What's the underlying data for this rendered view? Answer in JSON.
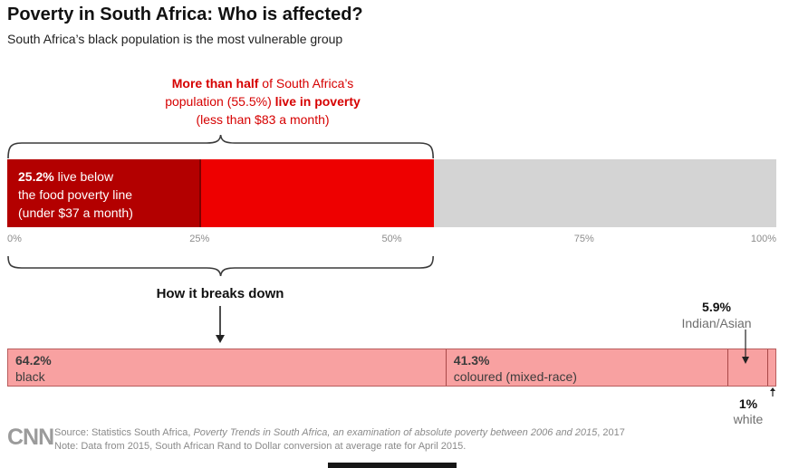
{
  "header": {
    "title": "Poverty in South Africa: Who is affected?",
    "subtitle": "South Africa’s black population is the most vulnerable group"
  },
  "annotation": {
    "line1_bold": "More than half",
    "line1_rest": " of South Africa’s",
    "line2_pre": "population (55.5%) ",
    "line2_bold": "live in poverty",
    "line3": "(less than $83 a month)"
  },
  "chart_data": [
    {
      "type": "bar",
      "subtype": "stacked-horizontal",
      "title": "Share of South Africa's population living in poverty",
      "xlim": [
        0,
        100
      ],
      "axis_ticks": [
        "0%",
        "25%",
        "50%",
        "75%",
        "100%"
      ],
      "brace_span_pct": 55.5,
      "segments": [
        {
          "name": "below-food-poverty-line",
          "value": 25.2,
          "color": "#b30000",
          "label_bold": "25.2%",
          "label_rest": " live below",
          "label_line2": "the food poverty line",
          "label_line3": "(under $37 a month)"
        },
        {
          "name": "in-poverty-above-food-line",
          "value": 30.3,
          "color": "#ee0000"
        },
        {
          "name": "not-in-poverty",
          "value": 44.5,
          "color": "#d4d4d4"
        }
      ]
    },
    {
      "type": "bar",
      "subtype": "stacked-horizontal-normalized",
      "title": "How it breaks down",
      "note": "segment widths proportional to values normalized to 100%",
      "segments": [
        {
          "name": "black",
          "value": 64.2,
          "label": "64.2%",
          "sublabel": "black",
          "label_position": "inside"
        },
        {
          "name": "coloured",
          "value": 41.3,
          "label": "41.3%",
          "sublabel": "coloured (mixed-race)",
          "label_position": "inside"
        },
        {
          "name": "indian-asian",
          "value": 5.9,
          "label": "5.9%",
          "sublabel": "Indian/Asian",
          "label_position": "above"
        },
        {
          "name": "white",
          "value": 1,
          "label": "1%",
          "sublabel": "white",
          "label_position": "below"
        }
      ]
    }
  ],
  "footer": {
    "logo": "CNN",
    "source_pre": "Source: Statistics South Africa, ",
    "source_italic": "Poverty Trends in South Africa, an examination of absolute poverty between 2006 and 2015",
    "source_post": ", 2017",
    "note": "Note: Data from 2015, South African Rand to Dollar conversion at average rate for April 2015."
  },
  "colors": {
    "dark_red": "#b30000",
    "bright_red": "#ee0000",
    "gray": "#d4d4d4",
    "pink": "#f8a1a1",
    "annotation_red": "#d60000"
  }
}
